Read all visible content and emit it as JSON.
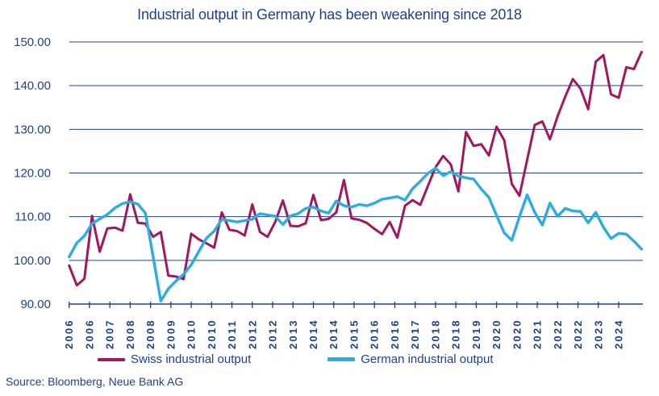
{
  "title": "Industrial output in Germany has been weakening since 2018",
  "source": "Source: Bloomberg, Neue Bank AG",
  "colors": {
    "swiss_line": "#a3175c",
    "german_line": "#2aade0",
    "text": "#1e4093",
    "grid": "#24418f"
  },
  "legend": [
    {
      "label": "Swiss industrial output"
    },
    {
      "label": "German industrial output"
    }
  ],
  "y_axis": {
    "min": 90,
    "max": 150,
    "step": 10,
    "tick_labels": [
      "150.00",
      "140.00",
      "130.00",
      "120.00",
      "110.00",
      "100.00",
      "90.00"
    ]
  },
  "x_axis": {
    "months_per_tick": 8,
    "tick_labels": [
      "2006",
      "2006",
      "2007",
      "2008",
      "2008",
      "2009",
      "2010",
      "2010",
      "2011",
      "2012",
      "2012",
      "2013",
      "2014",
      "2014",
      "2015",
      "2016",
      "2016",
      "2017",
      "2018",
      "2018",
      "2019",
      "2020",
      "2020",
      "2021",
      "2022",
      "2022",
      "2023",
      "2024"
    ]
  },
  "chart_data": {
    "type": "line",
    "title": "Industrial output in Germany has been weakening since 2018",
    "xlabel": "",
    "ylabel": "",
    "ylim": [
      90,
      150
    ],
    "grid": true,
    "legend_position": "bottom",
    "frequency": "quarterly samples of monthly index",
    "start_period": "2006Q1",
    "end_period": "2024Q4",
    "series": [
      {
        "name": "Swiss industrial output",
        "color_key": "swiss_line",
        "values": [
          98.8,
          94.3,
          95.8,
          110.2,
          102.0,
          107.3,
          107.5,
          106.8,
          115.1,
          108.6,
          108.4,
          105.4,
          106.5,
          96.5,
          96.3,
          95.7,
          106.1,
          104.8,
          103.9,
          102.9,
          111.0,
          107.0,
          106.7,
          105.7,
          112.8,
          106.5,
          105.4,
          108.8,
          113.7,
          107.9,
          107.8,
          108.5,
          115.0,
          109.2,
          109.5,
          111.0,
          118.4,
          109.6,
          109.3,
          108.6,
          107.2,
          106.0,
          108.8,
          105.2,
          112.5,
          113.8,
          112.7,
          117.0,
          121.3,
          123.9,
          122.0,
          115.8,
          129.4,
          126.2,
          126.6,
          124.0,
          130.6,
          127.5,
          117.5,
          114.8,
          123.0,
          131.0,
          131.8,
          127.7,
          133.0,
          137.5,
          141.5,
          139.3,
          134.6,
          145.5,
          147.0,
          138.0,
          137.2,
          144.2,
          143.8,
          147.7
        ]
      },
      {
        "name": "German industrial output",
        "color_key": "german_line",
        "values": [
          100.8,
          104.0,
          105.6,
          108.4,
          109.5,
          110.5,
          112.0,
          113.0,
          113.4,
          112.9,
          110.8,
          100.9,
          90.7,
          93.5,
          95.3,
          96.8,
          99.0,
          102.1,
          105.1,
          106.7,
          109.4,
          109.1,
          108.8,
          109.1,
          109.4,
          110.7,
          110.4,
          110.1,
          108.2,
          110.2,
          110.7,
          111.9,
          112.2,
          111.3,
          110.8,
          113.6,
          112.5,
          112.2,
          112.8,
          112.5,
          113.1,
          114.0,
          114.3,
          114.6,
          113.8,
          116.4,
          118.1,
          119.9,
          121.1,
          119.4,
          120.3,
          119.3,
          118.9,
          118.6,
          116.3,
          114.4,
          110.3,
          106.3,
          104.6,
          110.0,
          115.0,
          111.0,
          108.1,
          113.1,
          110.1,
          111.9,
          111.3,
          111.2,
          108.6,
          111.0,
          107.6,
          105.0,
          106.2,
          106.0,
          104.4,
          102.6
        ]
      }
    ]
  }
}
